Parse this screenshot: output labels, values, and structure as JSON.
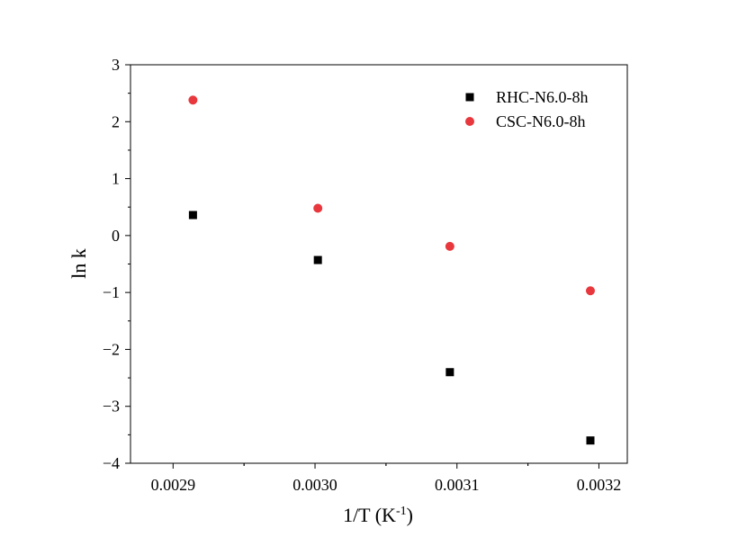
{
  "chart_data": {
    "type": "scatter",
    "xlabel": "1/T (K",
    "xlabel_sup": "-1",
    "xlabel_close": ")",
    "ylabel": "ln k",
    "xlim": [
      0.00287,
      0.00322
    ],
    "ylim": [
      -4,
      3
    ],
    "xticks": [
      "0.0029",
      "0.0030",
      "0.0031",
      "0.0032"
    ],
    "yticks": [
      "3",
      "2",
      "1",
      "0",
      "−1",
      "−2",
      "−3",
      "−4"
    ],
    "grid": false,
    "legend_position": "top-right",
    "series": [
      {
        "name": "RHC-N6.0-8h",
        "marker": "square",
        "color": "#000000",
        "x": [
          0.002914,
          0.003002,
          0.003095,
          0.003194
        ],
        "y": [
          0.36,
          -0.43,
          -2.4,
          -3.6
        ]
      },
      {
        "name": "CSC-N6.0-8h",
        "marker": "circle",
        "color": "#e8383d",
        "x": [
          0.002914,
          0.003002,
          0.003095,
          0.003194
        ],
        "y": [
          2.38,
          0.48,
          -0.19,
          -0.97
        ]
      }
    ]
  }
}
